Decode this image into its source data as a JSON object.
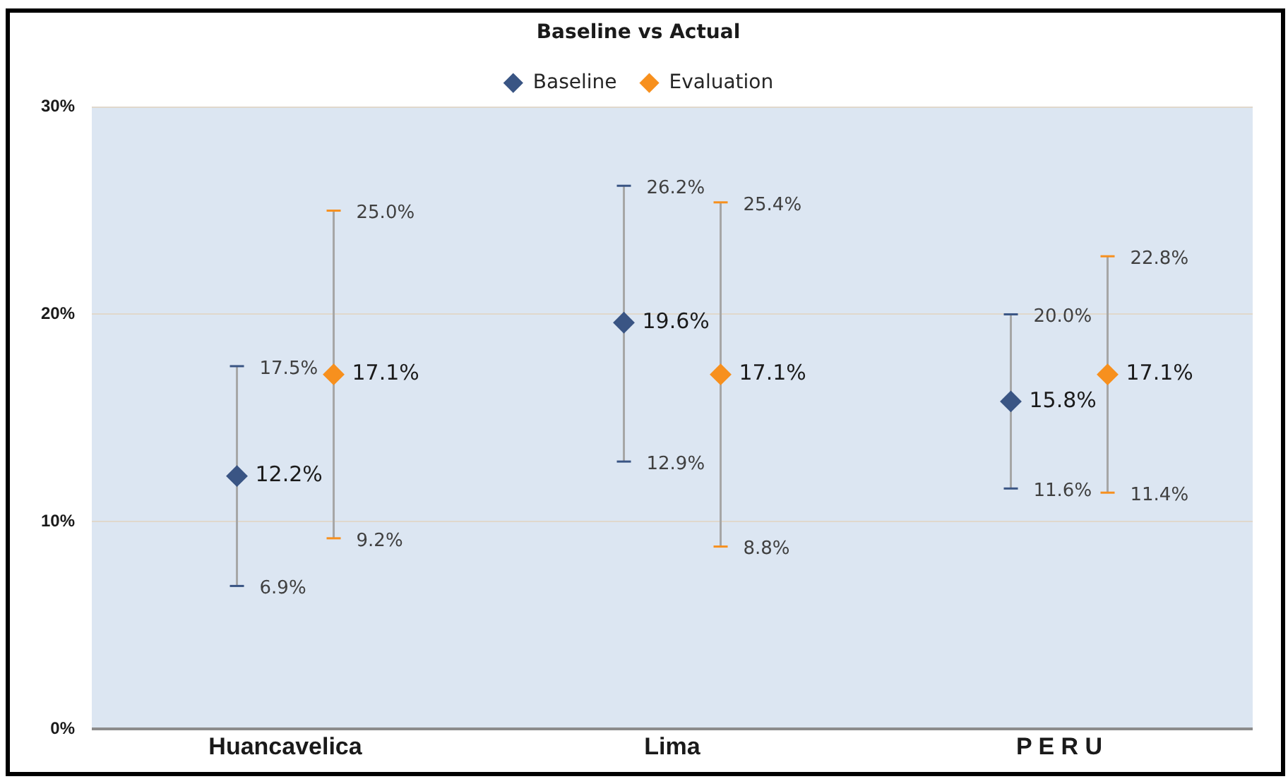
{
  "chart_data": {
    "type": "scatter",
    "title": "Baseline vs Actual",
    "categories": [
      "Huancavelica",
      "Lima",
      "P E R U"
    ],
    "series": [
      {
        "name": "Baseline",
        "color": "#3a5584",
        "values": [
          12.2,
          19.6,
          15.8
        ],
        "errors": [
          [
            6.9,
            17.5
          ],
          [
            12.9,
            26.2
          ],
          [
            11.6,
            20.0
          ]
        ],
        "value_labels": [
          "12.2%",
          "19.6%",
          "15.8%"
        ]
      },
      {
        "name": "Evaluation",
        "color": "#f7901e",
        "values": [
          17.1,
          17.1,
          17.1
        ],
        "errors": [
          [
            9.2,
            25.0
          ],
          [
            8.8,
            25.4
          ],
          [
            11.4,
            22.8
          ]
        ],
        "value_labels": [
          "17.1%",
          "17.1%",
          "17.1%"
        ]
      }
    ],
    "ylim": [
      0,
      30
    ],
    "yticks": [
      {
        "value": 0,
        "label": "0%"
      },
      {
        "value": 10,
        "label": "10%"
      },
      {
        "value": 20,
        "label": "20%"
      },
      {
        "value": 30,
        "label": "30%"
      }
    ],
    "grid": "y",
    "legend": "top",
    "marker": "diamond",
    "annotations": [
      "17.5%",
      "6.9%",
      "25.0%",
      "9.2%",
      "26.2%",
      "12.9%",
      "25.4%",
      "8.8%",
      "20.0%",
      "11.6%",
      "22.8%",
      "11.4%"
    ]
  }
}
